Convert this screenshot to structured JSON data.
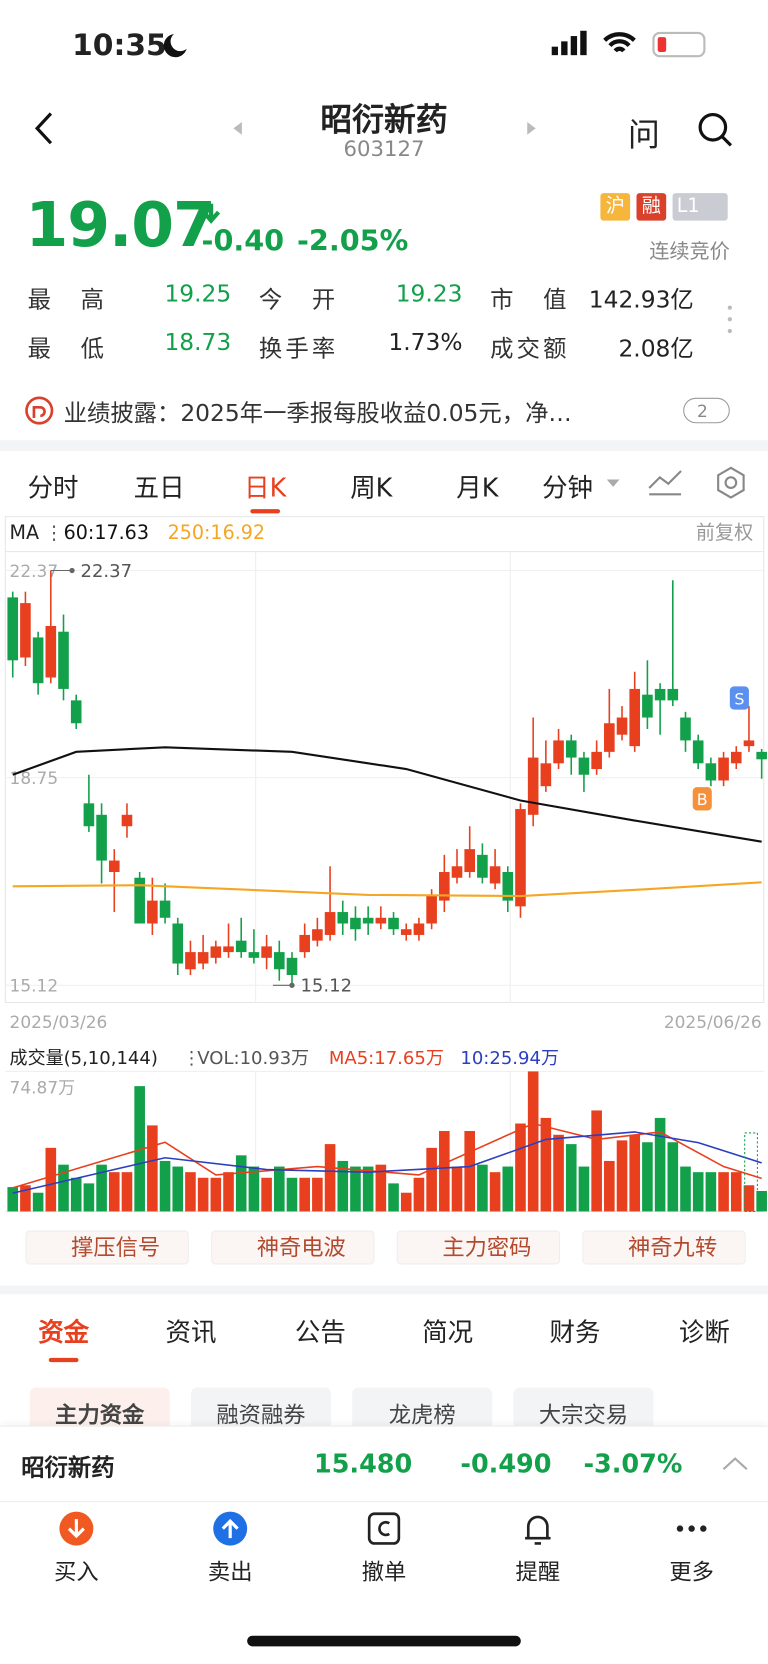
{
  "status": {
    "time": "10:35"
  },
  "header": {
    "title": "昭衍新药",
    "code": "603127",
    "ask": "问"
  },
  "quote": {
    "price": "19.07",
    "change": "-0.40",
    "pct": "-2.05%",
    "badges": [
      "沪",
      "融",
      "L1"
    ],
    "state": "连续竞价",
    "stats": [
      [
        "最高",
        "19.25"
      ],
      [
        "今开",
        "19.23"
      ],
      [
        "市值",
        "142.93亿"
      ],
      [
        "最低",
        "18.73"
      ],
      [
        "换手率",
        "1.73%"
      ],
      [
        "成交额",
        "2.08亿"
      ]
    ]
  },
  "notice": {
    "text": "业绩披露：2025年一季报每股收益0.05元，净…",
    "count": "2"
  },
  "tabs": [
    "分时",
    "五日",
    "日K",
    "周K",
    "月K",
    "分钟"
  ],
  "chart_data": {
    "type": "candlestick",
    "ma_legend": [
      "MA",
      "60:17.63",
      "250:16.92"
    ],
    "adjust": "前复权",
    "ylim": [
      14.82,
      22.7
    ],
    "yticks": [
      22.37,
      18.75,
      15.12
    ],
    "max_price": 22.37,
    "min_price": 15.12,
    "x_labels": [
      "2025/03/26",
      "2025/06/26"
    ],
    "trade_marks": [
      "B",
      "S"
    ],
    "up_color": "#e8401f",
    "down_color": "#13a04b",
    "candles": [
      [
        21.9,
        22.0,
        20.5,
        20.8
      ],
      [
        20.85,
        22.0,
        20.7,
        21.8
      ],
      [
        21.2,
        21.3,
        20.2,
        20.4
      ],
      [
        20.5,
        22.37,
        20.4,
        21.4
      ],
      [
        21.3,
        21.6,
        20.1,
        20.3
      ],
      [
        20.1,
        20.2,
        19.6,
        19.7
      ],
      [
        18.3,
        18.8,
        17.8,
        17.9
      ],
      [
        18.1,
        18.3,
        16.9,
        17.3
      ],
      [
        17.1,
        17.5,
        16.4,
        17.3
      ],
      [
        17.9,
        18.3,
        17.7,
        18.1
      ],
      [
        17.0,
        17.1,
        16.2,
        16.2
      ],
      [
        16.2,
        17.0,
        16.0,
        16.6
      ],
      [
        16.6,
        16.9,
        16.2,
        16.3
      ],
      [
        16.2,
        16.3,
        15.3,
        15.5
      ],
      [
        15.4,
        15.9,
        15.3,
        15.7
      ],
      [
        15.5,
        16.0,
        15.4,
        15.7
      ],
      [
        15.6,
        15.9,
        15.5,
        15.8
      ],
      [
        15.7,
        16.2,
        15.6,
        15.8
      ],
      [
        15.9,
        16.3,
        15.6,
        15.7
      ],
      [
        15.7,
        16.1,
        15.5,
        15.6
      ],
      [
        15.6,
        16.0,
        15.4,
        15.8
      ],
      [
        15.7,
        15.9,
        15.2,
        15.4
      ],
      [
        15.6,
        15.7,
        15.12,
        15.3
      ],
      [
        15.7,
        16.2,
        15.6,
        16.0
      ],
      [
        15.9,
        16.3,
        15.8,
        16.1
      ],
      [
        16.0,
        17.2,
        15.9,
        16.4
      ],
      [
        16.4,
        16.6,
        16.0,
        16.2
      ],
      [
        16.3,
        16.5,
        15.9,
        16.1
      ],
      [
        16.3,
        16.5,
        16.0,
        16.2
      ],
      [
        16.2,
        16.5,
        16.1,
        16.3
      ],
      [
        16.3,
        16.4,
        16.0,
        16.1
      ],
      [
        16.0,
        16.2,
        15.9,
        16.1
      ],
      [
        16.0,
        16.3,
        15.9,
        16.2
      ],
      [
        16.2,
        16.8,
        16.1,
        16.7
      ],
      [
        16.6,
        17.4,
        16.4,
        17.1
      ],
      [
        17.0,
        17.5,
        16.9,
        17.2
      ],
      [
        17.1,
        17.9,
        17.0,
        17.5
      ],
      [
        17.4,
        17.6,
        16.9,
        17.0
      ],
      [
        16.9,
        17.5,
        16.8,
        17.2
      ],
      [
        17.1,
        17.2,
        16.4,
        16.6
      ],
      [
        16.5,
        18.3,
        16.3,
        18.2
      ],
      [
        18.1,
        19.8,
        17.9,
        19.1
      ],
      [
        18.6,
        19.4,
        18.5,
        19.0
      ],
      [
        19.0,
        19.6,
        18.9,
        19.4
      ],
      [
        19.4,
        19.5,
        18.8,
        19.1
      ],
      [
        19.1,
        19.2,
        18.5,
        18.8
      ],
      [
        18.9,
        19.4,
        18.8,
        19.2
      ],
      [
        19.2,
        20.3,
        19.1,
        19.7
      ],
      [
        19.5,
        20.0,
        19.4,
        19.8
      ],
      [
        19.3,
        20.6,
        19.2,
        20.3
      ],
      [
        20.2,
        20.8,
        19.6,
        19.8
      ],
      [
        20.3,
        20.4,
        19.5,
        20.1
      ],
      [
        20.3,
        22.2,
        20.0,
        20.1
      ],
      [
        19.8,
        19.9,
        19.2,
        19.4
      ],
      [
        19.4,
        19.5,
        18.9,
        19.0
      ],
      [
        19.0,
        19.1,
        18.6,
        18.7
      ],
      [
        18.7,
        19.2,
        18.6,
        19.1
      ],
      [
        19.0,
        19.3,
        18.9,
        19.2
      ],
      [
        19.3,
        20.0,
        19.2,
        19.4
      ],
      [
        19.2,
        19.25,
        18.73,
        19.07
      ]
    ],
    "ma_lines": [
      {
        "name": "60",
        "color": "#111111",
        "x": [
          0,
          5,
          12,
          22,
          31,
          40,
          49,
          59
        ],
        "values": [
          18.8,
          19.2,
          19.28,
          19.2,
          18.9,
          18.35,
          18.0,
          17.63
        ]
      },
      {
        "name": "250",
        "color": "#f5a623",
        "x": [
          0,
          10,
          28,
          40,
          50,
          59
        ],
        "values": [
          16.85,
          16.87,
          16.7,
          16.68,
          16.8,
          16.92
        ]
      }
    ],
    "vol_legend": [
      "成交量(5,10,144)",
      "VOL:10.93万",
      "MA5:17.65万",
      "10:25.94万"
    ],
    "vol_ylim": [
      0,
      74.87
    ],
    "vol_yticks": [
      {
        "value": 74.87,
        "label": "74.87万"
      }
    ],
    "volumes": [
      13,
      14,
      10,
      34,
      25,
      18,
      15,
      25,
      21,
      21,
      67,
      46,
      27,
      24,
      21,
      18,
      18,
      21,
      30,
      24,
      18,
      24,
      18,
      18,
      18,
      36,
      27,
      24,
      24,
      25,
      15,
      10,
      18,
      34,
      43,
      24,
      43,
      25,
      21,
      24,
      47,
      74.87,
      50,
      41,
      36,
      24,
      54,
      27,
      38,
      41,
      37,
      50,
      37,
      24,
      21,
      21,
      21,
      21,
      14,
      10.93
    ],
    "vol_ma_lines": [
      {
        "name": "MA5",
        "color": "#e8401f",
        "x": [
          0,
          12,
          16,
          24,
          32,
          41,
          46,
          51,
          56,
          59
        ],
        "values": [
          12.6,
          37,
          19.5,
          24,
          19.5,
          47,
          38.5,
          42.5,
          24,
          17.65
        ]
      },
      {
        "name": "MA10",
        "color": "#2b3fc0",
        "x": [
          0,
          12,
          20,
          28,
          36,
          42,
          49,
          54,
          59
        ],
        "values": [
          9.8,
          28.7,
          22.4,
          21,
          24,
          38.5,
          42.5,
          36.8,
          25.94
        ]
      }
    ]
  },
  "tools": [
    "撑压信号",
    "神奇电波",
    "主力密码",
    "神奇九转"
  ],
  "sections": [
    "资金",
    "资讯",
    "公告",
    "简况",
    "财务",
    "诊断"
  ],
  "chips": [
    "主力资金",
    "融资融券",
    "龙虎榜",
    "大宗交易"
  ],
  "ticker": {
    "name": "昭衍新药",
    "price": "15.480",
    "change": "-0.490",
    "pct": "-3.07%"
  },
  "nav": [
    "买入",
    "卖出",
    "撤单",
    "提醒",
    "更多"
  ]
}
